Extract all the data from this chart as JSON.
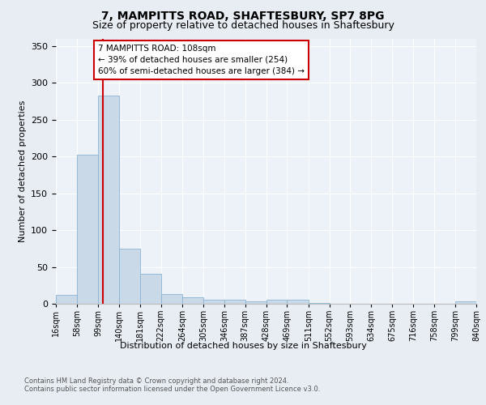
{
  "title1": "7, MAMPITTS ROAD, SHAFTESBURY, SP7 8PG",
  "title2": "Size of property relative to detached houses in Shaftesbury",
  "xlabel": "Distribution of detached houses by size in Shaftesbury",
  "ylabel": "Number of detached properties",
  "bar_edges": [
    16,
    58,
    99,
    140,
    181,
    222,
    264,
    305,
    346,
    387,
    428,
    469,
    511,
    552,
    593,
    634,
    675,
    716,
    758,
    799,
    840
  ],
  "bar_heights": [
    12,
    202,
    282,
    75,
    41,
    13,
    9,
    6,
    5,
    3,
    5,
    5,
    1,
    0,
    0,
    0,
    0,
    0,
    0,
    3
  ],
  "bar_color": "#c9d9e8",
  "bar_edgecolor": "#8ab4d4",
  "vline_x": 108,
  "vline_color": "#cc0000",
  "annotation_text": "7 MAMPITTS ROAD: 108sqm\n← 39% of detached houses are smaller (254)\n60% of semi-detached houses are larger (384) →",
  "annotation_box_color": "white",
  "annotation_box_edgecolor": "#cc0000",
  "ylim": [
    0,
    360
  ],
  "yticks": [
    0,
    50,
    100,
    150,
    200,
    250,
    300,
    350
  ],
  "footer1": "Contains HM Land Registry data © Crown copyright and database right 2024.",
  "footer2": "Contains public sector information licensed under the Open Government Licence v3.0.",
  "tick_labels": [
    "16sqm",
    "58sqm",
    "99sqm",
    "140sqm",
    "181sqm",
    "222sqm",
    "264sqm",
    "305sqm",
    "346sqm",
    "387sqm",
    "428sqm",
    "469sqm",
    "511sqm",
    "552sqm",
    "593sqm",
    "634sqm",
    "675sqm",
    "716sqm",
    "758sqm",
    "799sqm",
    "840sqm"
  ],
  "background_color": "#e8edf4",
  "plot_bg_color": "#edf1f8",
  "grid_color": "#ffffff",
  "title1_fontsize": 10,
  "title2_fontsize": 9,
  "ylabel_fontsize": 8,
  "xlabel_fontsize": 8,
  "tick_fontsize": 7,
  "footer_fontsize": 6
}
